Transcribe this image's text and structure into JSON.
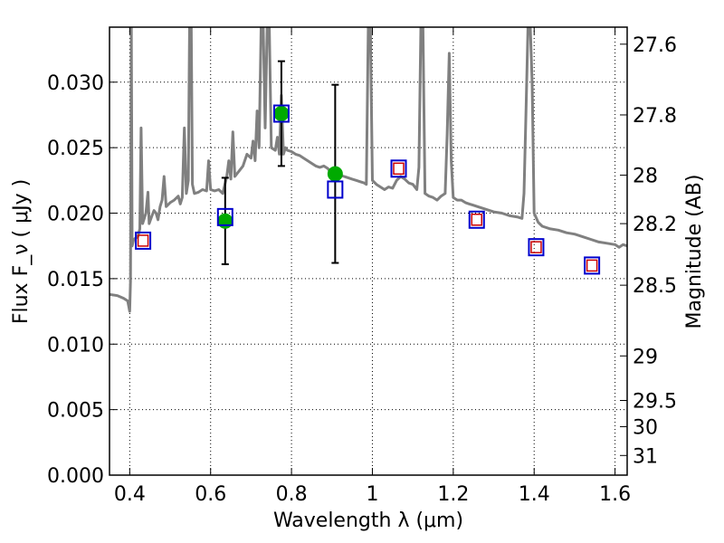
{
  "chart_data": {
    "type": "scatter",
    "title": "",
    "xlabel": "Wavelength  λ (μm)",
    "ylabel": "Flux  F_ν  ( μJy )",
    "y2label": "Magnitude (AB)",
    "xlim": [
      0.35,
      1.63
    ],
    "ylim": [
      0.0,
      0.0342
    ],
    "grid": true,
    "x_ticks": [
      {
        "value": 0.4,
        "label": "0.4"
      },
      {
        "value": 0.6,
        "label": "0.6"
      },
      {
        "value": 0.8,
        "label": "0.8"
      },
      {
        "value": 1.0,
        "label": "1"
      },
      {
        "value": 1.2,
        "label": "1.2"
      },
      {
        "value": 1.4,
        "label": "1.4"
      },
      {
        "value": 1.6,
        "label": "1.6"
      }
    ],
    "y_ticks": [
      {
        "value": 0.0,
        "label": "0.000"
      },
      {
        "value": 0.005,
        "label": "0.005"
      },
      {
        "value": 0.01,
        "label": "0.010"
      },
      {
        "value": 0.015,
        "label": "0.015"
      },
      {
        "value": 0.02,
        "label": "0.020"
      },
      {
        "value": 0.025,
        "label": "0.025"
      },
      {
        "value": 0.03,
        "label": "0.030"
      }
    ],
    "y2_ticks": [
      {
        "flux": 0.0329,
        "label": "27.6"
      },
      {
        "flux": 0.0275,
        "label": "27.8"
      },
      {
        "flux": 0.0229,
        "label": "28"
      },
      {
        "flux": 0.0192,
        "label": "28.2"
      },
      {
        "flux": 0.0145,
        "label": "28.5"
      },
      {
        "flux": 0.0091,
        "label": "29"
      },
      {
        "flux": 0.0057,
        "label": "29.5"
      },
      {
        "flux": 0.0037,
        "label": "30"
      },
      {
        "flux": 0.0015,
        "label": "31"
      }
    ],
    "colors": {
      "spectrum": "#808080",
      "observed": "#00aa00",
      "model_box": "#0000cc",
      "model_inner": "#cc0000",
      "errorbar": "#000000"
    },
    "series": [
      {
        "kind": "line",
        "points": [
          [
            0.35,
            0.0138
          ],
          [
            0.37,
            0.0137
          ],
          [
            0.385,
            0.0135
          ],
          [
            0.395,
            0.0133
          ],
          [
            0.398,
            0.0128
          ],
          [
            0.4,
            0.0125
          ],
          [
            0.402,
            0.0148
          ],
          [
            0.404,
            0.0345
          ],
          [
            0.406,
            0.0175
          ],
          [
            0.41,
            0.018
          ],
          [
            0.42,
            0.0182
          ],
          [
            0.425,
            0.0188
          ],
          [
            0.428,
            0.0265
          ],
          [
            0.432,
            0.0192
          ],
          [
            0.44,
            0.02
          ],
          [
            0.445,
            0.0216
          ],
          [
            0.448,
            0.0192
          ],
          [
            0.455,
            0.0198
          ],
          [
            0.46,
            0.0202
          ],
          [
            0.465,
            0.02
          ],
          [
            0.47,
            0.0195
          ],
          [
            0.475,
            0.0205
          ],
          [
            0.48,
            0.021
          ],
          [
            0.485,
            0.0228
          ],
          [
            0.49,
            0.0205
          ],
          [
            0.5,
            0.0208
          ],
          [
            0.51,
            0.021
          ],
          [
            0.52,
            0.0213
          ],
          [
            0.525,
            0.0207
          ],
          [
            0.53,
            0.0212
          ],
          [
            0.535,
            0.0265
          ],
          [
            0.54,
            0.0215
          ],
          [
            0.545,
            0.0225
          ],
          [
            0.548,
            0.0345
          ],
          [
            0.552,
            0.0345
          ],
          [
            0.555,
            0.0222
          ],
          [
            0.56,
            0.0215
          ],
          [
            0.57,
            0.0216
          ],
          [
            0.58,
            0.0218
          ],
          [
            0.59,
            0.0217
          ],
          [
            0.595,
            0.024
          ],
          [
            0.6,
            0.0218
          ],
          [
            0.61,
            0.0217
          ],
          [
            0.62,
            0.0218
          ],
          [
            0.63,
            0.0215
          ],
          [
            0.64,
            0.0228
          ],
          [
            0.645,
            0.024
          ],
          [
            0.65,
            0.0226
          ],
          [
            0.655,
            0.0262
          ],
          [
            0.66,
            0.0228
          ],
          [
            0.67,
            0.0232
          ],
          [
            0.68,
            0.0236
          ],
          [
            0.69,
            0.0245
          ],
          [
            0.7,
            0.0242
          ],
          [
            0.705,
            0.0255
          ],
          [
            0.71,
            0.024
          ],
          [
            0.715,
            0.0278
          ],
          [
            0.72,
            0.025
          ],
          [
            0.725,
            0.0345
          ],
          [
            0.73,
            0.0345
          ],
          [
            0.735,
            0.0265
          ],
          [
            0.74,
            0.0345
          ],
          [
            0.745,
            0.0345
          ],
          [
            0.75,
            0.025
          ],
          [
            0.76,
            0.0248
          ],
          [
            0.765,
            0.0258
          ],
          [
            0.77,
            0.0245
          ],
          [
            0.775,
            0.029
          ],
          [
            0.78,
            0.0245
          ],
          [
            0.785,
            0.025
          ],
          [
            0.79,
            0.0248
          ],
          [
            0.8,
            0.0247
          ],
          [
            0.81,
            0.0245
          ],
          [
            0.82,
            0.0244
          ],
          [
            0.83,
            0.0242
          ],
          [
            0.84,
            0.024
          ],
          [
            0.85,
            0.0238
          ],
          [
            0.86,
            0.0236
          ],
          [
            0.87,
            0.0235
          ],
          [
            0.88,
            0.0236
          ],
          [
            0.89,
            0.0234
          ],
          [
            0.895,
            0.0232
          ],
          [
            0.9,
            0.023
          ],
          [
            0.91,
            0.023
          ],
          [
            0.92,
            0.0229
          ],
          [
            0.93,
            0.0228
          ],
          [
            0.94,
            0.0227
          ],
          [
            0.95,
            0.0226
          ],
          [
            0.96,
            0.0225
          ],
          [
            0.97,
            0.0224
          ],
          [
            0.98,
            0.0223
          ],
          [
            0.985,
            0.0222
          ],
          [
            0.99,
            0.0345
          ],
          [
            0.995,
            0.0345
          ],
          [
            1.0,
            0.0225
          ],
          [
            1.01,
            0.0222
          ],
          [
            1.02,
            0.022
          ],
          [
            1.03,
            0.0218
          ],
          [
            1.04,
            0.022
          ],
          [
            1.05,
            0.0219
          ],
          [
            1.06,
            0.0225
          ],
          [
            1.07,
            0.0228
          ],
          [
            1.08,
            0.0226
          ],
          [
            1.09,
            0.0223
          ],
          [
            1.1,
            0.0222
          ],
          [
            1.11,
            0.0218
          ],
          [
            1.115,
            0.0235
          ],
          [
            1.12,
            0.0345
          ],
          [
            1.125,
            0.0345
          ],
          [
            1.13,
            0.0215
          ],
          [
            1.14,
            0.0213
          ],
          [
            1.15,
            0.0212
          ],
          [
            1.16,
            0.021
          ],
          [
            1.17,
            0.0213
          ],
          [
            1.18,
            0.0215
          ],
          [
            1.185,
            0.026
          ],
          [
            1.19,
            0.0322
          ],
          [
            1.195,
            0.024
          ],
          [
            1.2,
            0.0212
          ],
          [
            1.21,
            0.021
          ],
          [
            1.22,
            0.021
          ],
          [
            1.23,
            0.0208
          ],
          [
            1.24,
            0.0207
          ],
          [
            1.25,
            0.0206
          ],
          [
            1.26,
            0.0205
          ],
          [
            1.28,
            0.0203
          ],
          [
            1.3,
            0.0201
          ],
          [
            1.32,
            0.02
          ],
          [
            1.34,
            0.0198
          ],
          [
            1.36,
            0.0197
          ],
          [
            1.37,
            0.0196
          ],
          [
            1.375,
            0.0215
          ],
          [
            1.38,
            0.028
          ],
          [
            1.385,
            0.0345
          ],
          [
            1.39,
            0.0345
          ],
          [
            1.395,
            0.03
          ],
          [
            1.4,
            0.02
          ],
          [
            1.41,
            0.0193
          ],
          [
            1.42,
            0.019
          ],
          [
            1.44,
            0.0188
          ],
          [
            1.46,
            0.0187
          ],
          [
            1.48,
            0.0185
          ],
          [
            1.5,
            0.0184
          ],
          [
            1.52,
            0.0182
          ],
          [
            1.54,
            0.018
          ],
          [
            1.56,
            0.0178
          ],
          [
            1.58,
            0.0177
          ],
          [
            1.6,
            0.0176
          ],
          [
            1.61,
            0.0174
          ],
          [
            1.62,
            0.0176
          ],
          [
            1.63,
            0.0175
          ]
        ]
      },
      {
        "kind": "points_with_errors",
        "x": [
          0.636,
          0.775,
          0.908
        ],
        "y": [
          0.0194,
          0.0276,
          0.023
        ],
        "yerr": [
          0.0033,
          0.004,
          0.0068
        ]
      },
      {
        "kind": "boxes",
        "x": [
          0.433,
          0.636,
          0.775,
          0.908,
          1.065,
          1.258,
          1.405,
          1.543
        ],
        "y": [
          0.0179,
          0.0197,
          0.0276,
          0.0218,
          0.0234,
          0.0195,
          0.0174,
          0.016
        ]
      },
      {
        "kind": "inner_boxes",
        "x": [
          0.433,
          1.065,
          1.258,
          1.405,
          1.543
        ],
        "y": [
          0.0179,
          0.0234,
          0.0195,
          0.0174,
          0.016
        ]
      }
    ]
  }
}
